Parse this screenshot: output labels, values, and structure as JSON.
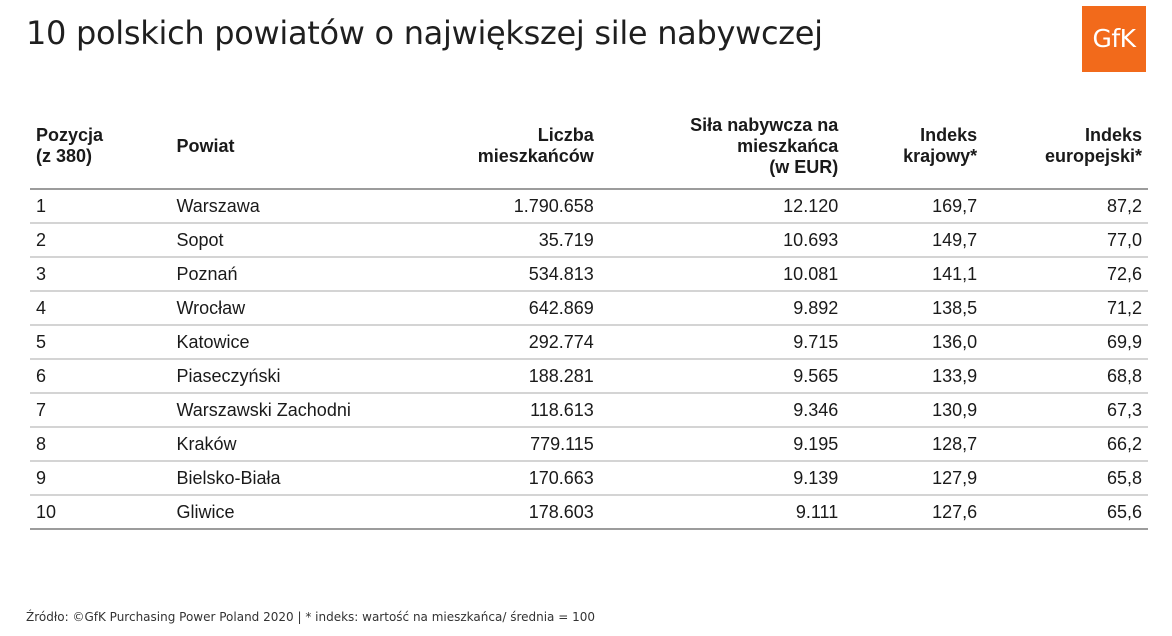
{
  "title": "10 polskich powiatów o największej sile nabywczej",
  "logo": {
    "text": "GfK",
    "color": "#f26a1b"
  },
  "table": {
    "headers": [
      {
        "line1": "Pozycja",
        "line2": "(z 380)",
        "line3": ""
      },
      {
        "line1": "Powiat",
        "line2": "",
        "line3": ""
      },
      {
        "line1": "Liczba",
        "line2": "mieszkańców",
        "line3": ""
      },
      {
        "line1": "Siła nabywcza na",
        "line2": "mieszkańca",
        "line3": "(w EUR)"
      },
      {
        "line1": "Indeks",
        "line2": "krajowy*",
        "line3": ""
      },
      {
        "line1": "Indeks",
        "line2": "europejski*",
        "line3": ""
      }
    ],
    "rows": [
      [
        "1",
        "Warszawa",
        "1.790.658",
        "12.120",
        "169,7",
        "87,2"
      ],
      [
        "2",
        "Sopot",
        "35.719",
        "10.693",
        "149,7",
        "77,0"
      ],
      [
        "3",
        "Poznań",
        "534.813",
        "10.081",
        "141,1",
        "72,6"
      ],
      [
        "4",
        "Wrocław",
        "642.869",
        "9.892",
        "138,5",
        "71,2"
      ],
      [
        "5",
        "Katowice",
        "292.774",
        "9.715",
        "136,0",
        "69,9"
      ],
      [
        "6",
        "Piaseczyński",
        "188.281",
        "9.565",
        "133,9",
        "68,8"
      ],
      [
        "7",
        "Warszawski Zachodni",
        "118.613",
        "9.346",
        "130,9",
        "67,3"
      ],
      [
        "8",
        "Kraków",
        "779.115",
        "9.195",
        "128,7",
        "66,2"
      ],
      [
        "9",
        "Bielsko-Biała",
        "170.663",
        "9.139",
        "127,9",
        "65,8"
      ],
      [
        "10",
        "Gliwice",
        "178.603",
        "9.111",
        "127,6",
        "65,6"
      ]
    ]
  },
  "footnote": "Źródło: ©GfK Purchasing Power Poland 2020  |  * indeks: wartość na mieszkańca/ średnia = 100"
}
